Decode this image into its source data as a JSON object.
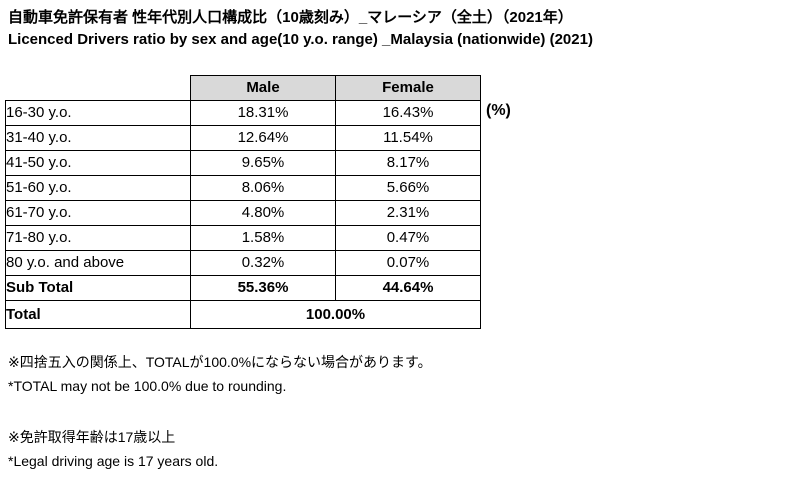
{
  "titles": {
    "jp": "自動車免許保有者 性年代別人口構成比（10歳刻み）_マレーシア（全土）（2021年）",
    "en": "Licenced Drivers ratio by sex and age(10 y.o. range) _Malaysia (nationwide) (2021)"
  },
  "unit_label": "(%)",
  "table": {
    "columns": {
      "male": "Male",
      "female": "Female"
    },
    "rows": [
      {
        "label": "16-30 y.o.",
        "male": "18.31%",
        "female": "16.43%"
      },
      {
        "label": "31-40 y.o.",
        "male": "12.64%",
        "female": "11.54%"
      },
      {
        "label": "41-50 y.o.",
        "male": "9.65%",
        "female": "8.17%"
      },
      {
        "label": "51-60 y.o.",
        "male": "8.06%",
        "female": "5.66%"
      },
      {
        "label": "61-70 y.o.",
        "male": "4.80%",
        "female": "2.31%"
      },
      {
        "label": "71-80 y.o.",
        "male": "1.58%",
        "female": "0.47%"
      },
      {
        "label": "80 y.o. and above",
        "male": "0.32%",
        "female": "0.07%"
      }
    ],
    "subtotal": {
      "label": "Sub Total",
      "male": "55.36%",
      "female": "44.64%"
    },
    "total": {
      "label": "Total",
      "value": "100.00%"
    }
  },
  "footnotes": [
    {
      "jp": "※四捨五入の関係上、TOTALが100.0%にならない場合があります。",
      "en": "*TOTAL may not be 100.0% due to rounding."
    },
    {
      "jp": "※免許取得年齢は17歳以上",
      "en": "*Legal driving age is 17 years old."
    }
  ],
  "colors": {
    "header_bg": "#d9d9d9",
    "border": "#000000",
    "text": "#000000",
    "background": "#ffffff"
  },
  "chart_data": {
    "type": "table",
    "title": "Licenced Drivers ratio by sex and age(10 y.o. range) _Malaysia (nationwide) (2021)",
    "title_jp": "自動車免許保有者 性年代別人口構成比（10歳刻み）_マレーシア（全土）（2021年）",
    "unit": "%",
    "categories": [
      "16-30 y.o.",
      "31-40 y.o.",
      "41-50 y.o.",
      "51-60 y.o.",
      "61-70 y.o.",
      "71-80 y.o.",
      "80 y.o. and above"
    ],
    "series": [
      {
        "name": "Male",
        "values": [
          18.31,
          12.64,
          9.65,
          8.06,
          4.8,
          1.58,
          0.32
        ],
        "subtotal": 55.36
      },
      {
        "name": "Female",
        "values": [
          16.43,
          11.54,
          8.17,
          5.66,
          2.31,
          0.47,
          0.07
        ],
        "subtotal": 44.64
      }
    ],
    "total": 100.0
  }
}
